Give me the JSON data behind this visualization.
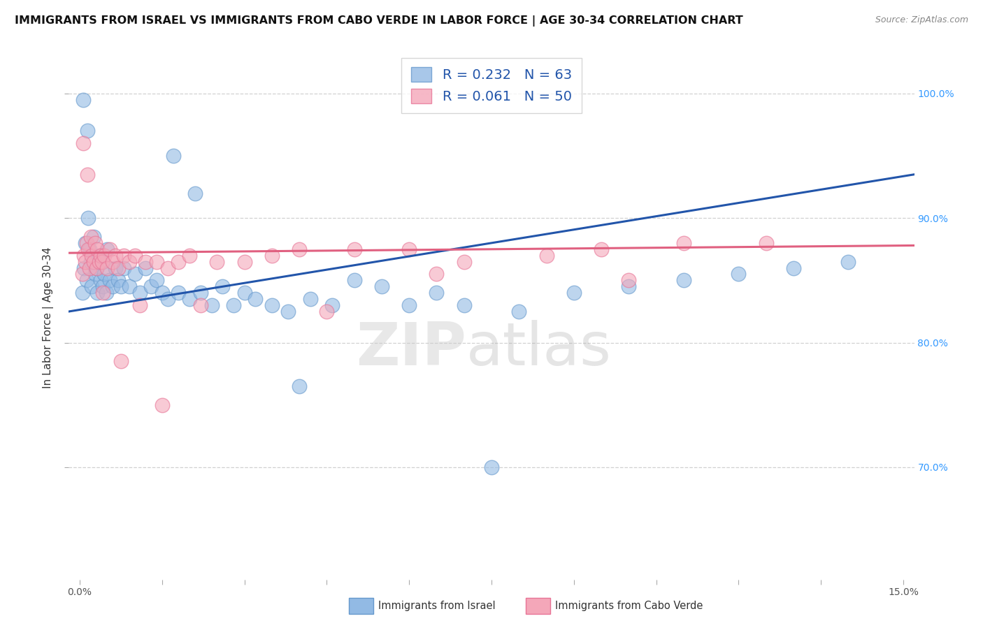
{
  "title": "IMMIGRANTS FROM ISRAEL VS IMMIGRANTS FROM CABO VERDE IN LABOR FORCE | AGE 30-34 CORRELATION CHART",
  "source": "Source: ZipAtlas.com",
  "ylabel": "In Labor Force | Age 30-34",
  "xlim": [
    -0.2,
    15.2
  ],
  "ylim": [
    61.0,
    103.0
  ],
  "yticks": [
    70.0,
    80.0,
    90.0,
    100.0
  ],
  "yticklabels": [
    "70.0%",
    "80.0%",
    "90.0%",
    "100.0%"
  ],
  "legend_label_israel": "Immigrants from Israel",
  "legend_label_cabo": "Immigrants from Cabo Verde",
  "blue_color": "#92BAE4",
  "pink_color": "#F4A7B9",
  "blue_edge_color": "#6699CC",
  "pink_edge_color": "#E87496",
  "blue_line_color": "#2255AA",
  "pink_line_color": "#E06080",
  "watermark_zip": "ZIP",
  "watermark_atlas": "atlas",
  "background_color": "#ffffff",
  "grid_color": "#cccccc",
  "title_fontsize": 11.5,
  "axis_label_fontsize": 11,
  "tick_fontsize": 10,
  "right_tick_color": "#3399FF",
  "israel_x": [
    0.05,
    0.08,
    0.1,
    0.12,
    0.15,
    0.18,
    0.2,
    0.22,
    0.25,
    0.28,
    0.3,
    0.32,
    0.35,
    0.38,
    0.4,
    0.42,
    0.45,
    0.48,
    0.5,
    0.55,
    0.6,
    0.65,
    0.7,
    0.75,
    0.8,
    0.9,
    1.0,
    1.1,
    1.2,
    1.3,
    1.4,
    1.5,
    1.6,
    1.8,
    2.0,
    2.2,
    2.4,
    2.6,
    2.8,
    3.0,
    3.2,
    3.5,
    3.8,
    4.2,
    4.6,
    5.0,
    5.5,
    6.0,
    6.5,
    7.0,
    8.0,
    9.0,
    10.0,
    11.0,
    12.0,
    13.0,
    14.0,
    0.06,
    0.14,
    1.7,
    2.1,
    4.0,
    7.5
  ],
  "israel_y": [
    84.0,
    86.0,
    88.0,
    85.0,
    90.0,
    87.5,
    86.5,
    84.5,
    88.5,
    85.5,
    86.0,
    84.0,
    87.0,
    85.0,
    86.5,
    84.5,
    85.5,
    84.0,
    87.5,
    85.0,
    84.5,
    86.0,
    85.0,
    84.5,
    86.0,
    84.5,
    85.5,
    84.0,
    86.0,
    84.5,
    85.0,
    84.0,
    83.5,
    84.0,
    83.5,
    84.0,
    83.0,
    84.5,
    83.0,
    84.0,
    83.5,
    83.0,
    82.5,
    83.5,
    83.0,
    85.0,
    84.5,
    83.0,
    84.0,
    83.0,
    82.5,
    84.0,
    84.5,
    85.0,
    85.5,
    86.0,
    86.5,
    99.5,
    97.0,
    95.0,
    92.0,
    76.5,
    70.0
  ],
  "cabo_x": [
    0.05,
    0.08,
    0.1,
    0.12,
    0.15,
    0.18,
    0.2,
    0.22,
    0.25,
    0.28,
    0.3,
    0.32,
    0.35,
    0.38,
    0.4,
    0.45,
    0.5,
    0.55,
    0.6,
    0.65,
    0.7,
    0.8,
    0.9,
    1.0,
    1.2,
    1.4,
    1.6,
    1.8,
    2.0,
    2.5,
    3.0,
    3.5,
    4.0,
    5.0,
    6.0,
    7.0,
    8.5,
    9.5,
    11.0,
    12.5,
    0.06,
    0.14,
    0.42,
    0.75,
    1.1,
    1.5,
    2.2,
    4.5,
    6.5,
    10.0
  ],
  "cabo_y": [
    85.5,
    87.0,
    86.5,
    88.0,
    87.5,
    86.0,
    88.5,
    87.0,
    86.5,
    88.0,
    86.0,
    87.5,
    86.5,
    87.0,
    86.5,
    87.0,
    86.0,
    87.5,
    86.5,
    87.0,
    86.0,
    87.0,
    86.5,
    87.0,
    86.5,
    86.5,
    86.0,
    86.5,
    87.0,
    86.5,
    86.5,
    87.0,
    87.5,
    87.5,
    87.5,
    86.5,
    87.0,
    87.5,
    88.0,
    88.0,
    96.0,
    93.5,
    84.0,
    78.5,
    83.0,
    75.0,
    83.0,
    82.5,
    85.5,
    85.0
  ],
  "blue_line_x0": -0.2,
  "blue_line_x1": 15.2,
  "blue_line_y0": 82.5,
  "blue_line_y1": 93.5,
  "pink_line_x0": -0.2,
  "pink_line_x1": 15.2,
  "pink_line_y0": 87.2,
  "pink_line_y1": 87.8
}
